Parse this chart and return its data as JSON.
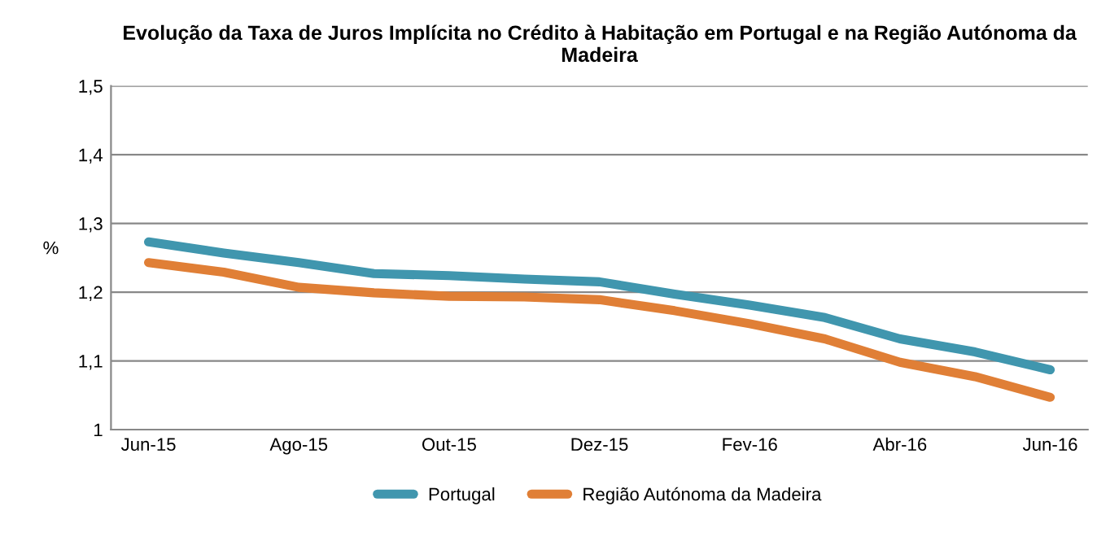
{
  "chart_data": {
    "type": "line",
    "title": "Evolução da Taxa de Juros Implícita no Crédito à Habitação em Portugal e na Região Autónoma da Madeira",
    "ylabel": "%",
    "categories": [
      "Jun-15",
      null,
      "Ago-15",
      null,
      "Out-15",
      null,
      "Dez-15",
      null,
      "Fev-16",
      null,
      "Abr-16",
      null,
      "Jun-16"
    ],
    "series": [
      {
        "name": "Portugal",
        "color": "#4096ae",
        "values": [
          1.273,
          1.257,
          1.243,
          1.227,
          1.224,
          1.219,
          1.215,
          1.197,
          1.181,
          1.163,
          1.132,
          1.113,
          1.087
        ]
      },
      {
        "name": "Região Autónoma da Madeira",
        "color": "#e07f36",
        "values": [
          1.243,
          1.229,
          1.207,
          1.199,
          1.194,
          1.193,
          1.189,
          1.173,
          1.154,
          1.132,
          1.098,
          1.077,
          1.047
        ]
      }
    ],
    "ylim": [
      1,
      1.5
    ],
    "yticks": [
      1,
      {
        "value": 1.1,
        "label": "1,1"
      },
      {
        "value": 1.2,
        "label": "1,2"
      },
      {
        "value": 1.3,
        "label": "1,3"
      },
      {
        "value": 1.4,
        "label": "1,4"
      },
      {
        "value": 1.5,
        "label": "1,5"
      }
    ],
    "grid": "y",
    "legend": "bottom",
    "marker": "none",
    "line_style": "solid"
  }
}
